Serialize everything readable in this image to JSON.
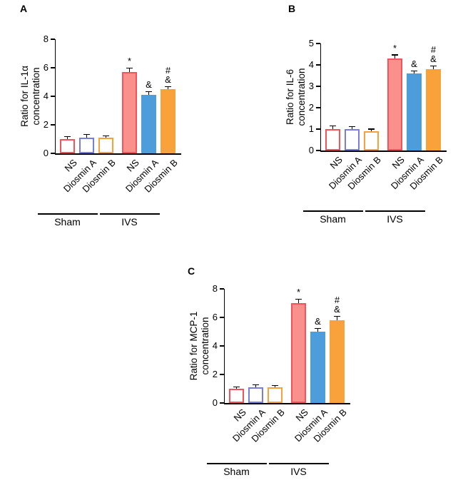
{
  "figure": {
    "panels": [
      {
        "letter": "A"
      },
      {
        "letter": "B"
      },
      {
        "letter": "C"
      }
    ]
  },
  "axis_color": "#000000",
  "error_bar_color": "#000000",
  "bar_styles": [
    {
      "fill": "#ffffff",
      "border": "#f2545b"
    },
    {
      "fill": "#ffffff",
      "border": "#7a7de0"
    },
    {
      "fill": "#ffffff",
      "border": "#f6a13d"
    },
    {
      "fill": "#f9908c",
      "border": "#f2545b"
    },
    {
      "fill": "#4d9ddb",
      "border": "#4d9ddb"
    },
    {
      "fill": "#f9a23c",
      "border": "#f9a23c"
    }
  ],
  "chart_data": [
    {
      "type": "bar",
      "panel": "A",
      "ylabel_lines": [
        "Ratio for IL-1α",
        "concentration"
      ],
      "ylim": [
        0,
        8
      ],
      "yticks": [
        0,
        2,
        4,
        6,
        8
      ],
      "categories": [
        "NS",
        "Diosmin A",
        "Diosmin B",
        "NS",
        "Diosmin A",
        "Diosmin B"
      ],
      "values": [
        1.0,
        1.1,
        1.1,
        5.7,
        4.1,
        4.5
      ],
      "errors": [
        0.15,
        0.2,
        0.1,
        0.25,
        0.2,
        0.15
      ],
      "annotations": [
        [],
        [],
        [],
        [
          "*"
        ],
        [
          "&"
        ],
        [
          "#",
          "&"
        ]
      ],
      "groups": [
        {
          "label": "Sham",
          "from": 0,
          "to": 2
        },
        {
          "label": "IVS",
          "from": 3,
          "to": 5
        }
      ]
    },
    {
      "type": "bar",
      "panel": "B",
      "ylabel_lines": [
        "Ratio for IL-6",
        "concentration"
      ],
      "ylim": [
        0,
        5
      ],
      "yticks": [
        0,
        1,
        2,
        3,
        4,
        5
      ],
      "categories": [
        "NS",
        "Diosmin A",
        "Diosmin B",
        "NS",
        "Diosmin A",
        "Diosmin B"
      ],
      "values": [
        1.0,
        1.0,
        0.9,
        4.3,
        3.6,
        3.8
      ],
      "errors": [
        0.12,
        0.1,
        0.08,
        0.15,
        0.1,
        0.12
      ],
      "annotations": [
        [],
        [],
        [],
        [
          "*"
        ],
        [
          "&"
        ],
        [
          "#",
          "&"
        ]
      ],
      "groups": [
        {
          "label": "Sham",
          "from": 0,
          "to": 2
        },
        {
          "label": "IVS",
          "from": 3,
          "to": 5
        }
      ]
    },
    {
      "type": "bar",
      "panel": "C",
      "ylabel_lines": [
        "Ratio for MCP-1",
        "concentration"
      ],
      "ylim": [
        0,
        8
      ],
      "yticks": [
        0,
        2,
        4,
        6,
        8
      ],
      "categories": [
        "NS",
        "Diosmin A",
        "Diosmin B",
        "NS",
        "Diosmin A",
        "Diosmin B"
      ],
      "values": [
        1.0,
        1.1,
        1.1,
        7.0,
        5.0,
        5.8
      ],
      "errors": [
        0.1,
        0.15,
        0.08,
        0.25,
        0.2,
        0.25
      ],
      "annotations": [
        [],
        [],
        [],
        [
          "*"
        ],
        [
          "&"
        ],
        [
          "#",
          "&"
        ]
      ],
      "groups": [
        {
          "label": "Sham",
          "from": 0,
          "to": 2
        },
        {
          "label": "IVS",
          "from": 3,
          "to": 5
        }
      ]
    }
  ]
}
